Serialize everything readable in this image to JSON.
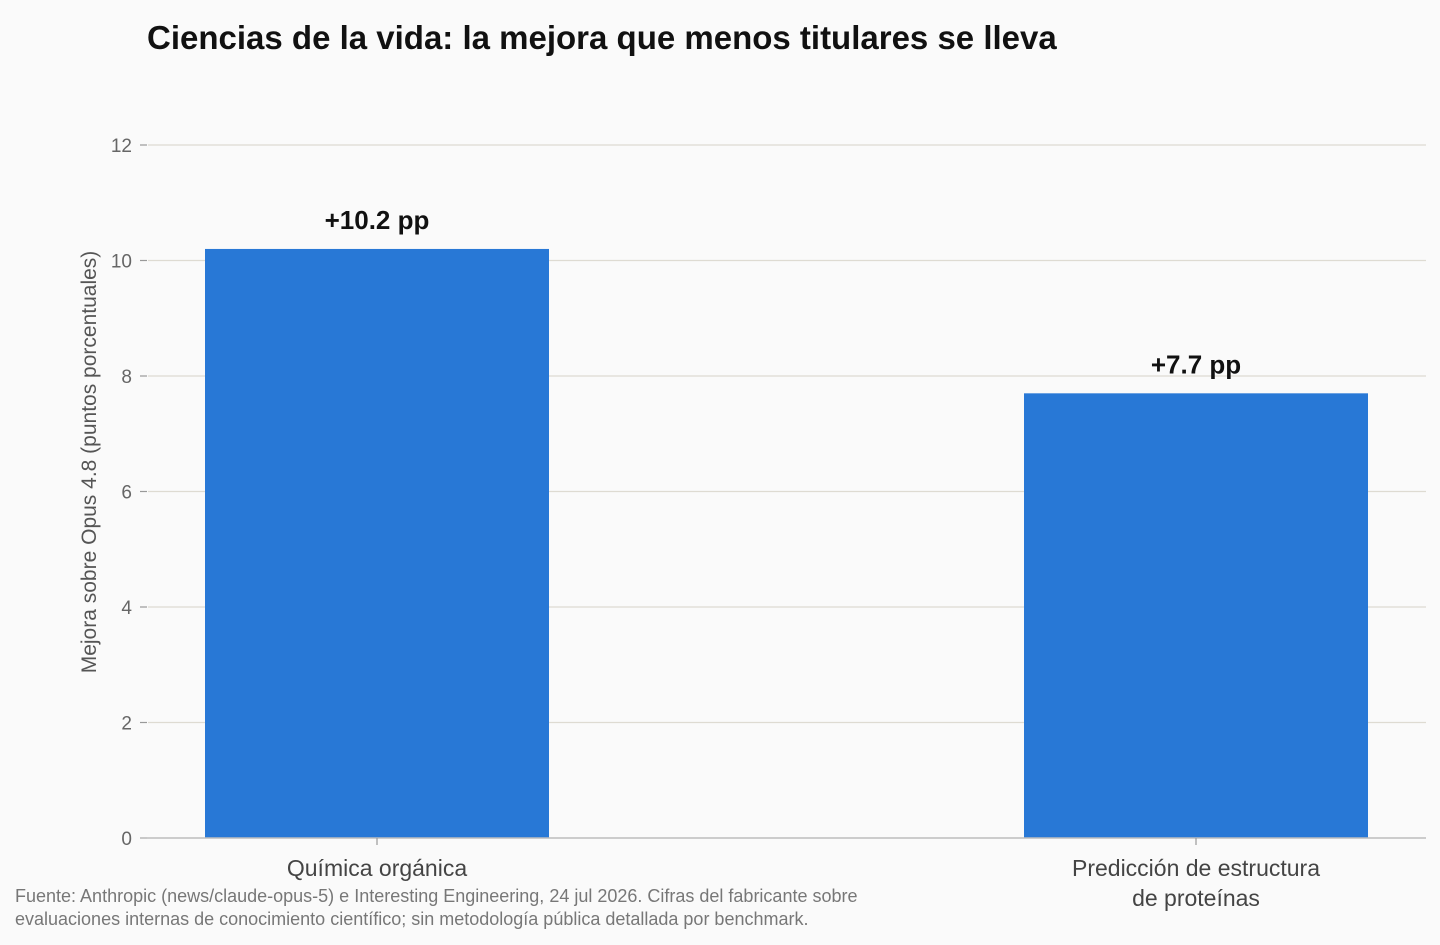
{
  "chart_data": {
    "type": "bar",
    "title": "Ciencias de la vida: la mejora que menos titulares se lleva",
    "xlabel": "",
    "ylabel": "Mejora sobre Opus 4.8 (puntos porcentuales)",
    "categories": [
      [
        "Química orgánica"
      ],
      [
        "Predicción de estructura",
        "de proteínas"
      ]
    ],
    "values": [
      10.2,
      7.7
    ],
    "data_labels": [
      "+10.2 pp",
      "+7.7 pp"
    ],
    "ylim": [
      0,
      12
    ],
    "yticks": [
      0,
      2,
      4,
      6,
      8,
      10,
      12
    ],
    "grid": true,
    "legend": "none",
    "bar_color": "#2878d6",
    "source": [
      "Fuente: Anthropic (news/claude-opus-5) e Interesting Engineering, 24 jul 2026. Cifras del fabricante sobre",
      "evaluaciones internas de conocimiento científico; sin metodología pública detallada por benchmark."
    ]
  }
}
